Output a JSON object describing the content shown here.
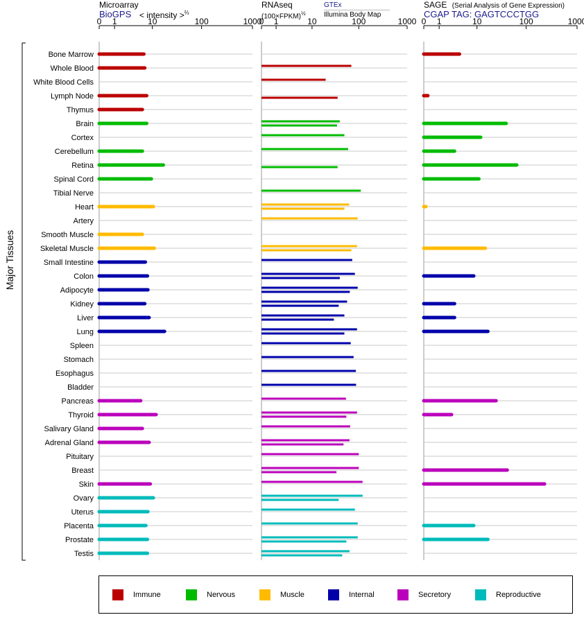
{
  "panels": {
    "microarray": {
      "title": "Microarray",
      "source": "BioGPS",
      "unit": "< intensity >",
      "unit_exp": "⅔"
    },
    "rnaseq": {
      "title": "RNAseq",
      "unit": "(100×FPKM)",
      "unit_exp": "½",
      "source1": "GTEx",
      "source2": "Illumina Body Map"
    },
    "sage": {
      "title": "SAGE",
      "subtitle": "(Serial Analysis of Gene Expression)",
      "tag": "CGAP TAG: GAGTCCCTGG"
    }
  },
  "chart_data": {
    "type": "bar",
    "y_group_label": "Major Tissues",
    "x_ticks": [
      "0",
      "1",
      "10",
      "100",
      "1000"
    ],
    "x_tick_values": [
      0,
      1,
      10,
      100,
      1000
    ],
    "xlim": [
      0,
      1000
    ],
    "categories": [
      "Bone Marrow",
      "Whole Blood",
      "White Blood Cells",
      "Lymph Node",
      "Thymus",
      "Brain",
      "Cortex",
      "Cerebellum",
      "Retina",
      "Spinal Cord",
      "Tibial Nerve",
      "Heart",
      "Artery",
      "Smooth Muscle",
      "Skeletal Muscle",
      "Small Intestine",
      "Colon",
      "Adipocyte",
      "Kidney",
      "Liver",
      "Lung",
      "Spleen",
      "Stomach",
      "Esophagus",
      "Bladder",
      "Pancreas",
      "Thyroid",
      "Salivary Gland",
      "Adrenal Gland",
      "Pituitary",
      "Breast",
      "Skin",
      "Ovary",
      "Uterus",
      "Placenta",
      "Prostate",
      "Testis"
    ],
    "groups": [
      "Immune",
      "Immune",
      "Immune",
      "Immune",
      "Immune",
      "Nervous",
      "Nervous",
      "Nervous",
      "Nervous",
      "Nervous",
      "Nervous",
      "Muscle",
      "Muscle",
      "Muscle",
      "Muscle",
      "Internal",
      "Internal",
      "Internal",
      "Internal",
      "Internal",
      "Internal",
      "Internal",
      "Internal",
      "Internal",
      "Internal",
      "Secretory",
      "Secretory",
      "Secretory",
      "Secretory",
      "Secretory",
      "Secretory",
      "Secretory",
      "Reproductive",
      "Reproductive",
      "Reproductive",
      "Reproductive",
      "Reproductive"
    ],
    "legend": [
      {
        "name": "Immune",
        "color": "#bb0000"
      },
      {
        "name": "Nervous",
        "color": "#00bb00"
      },
      {
        "name": "Muscle",
        "color": "#ffbb00"
      },
      {
        "name": "Internal",
        "color": "#0000aa"
      },
      {
        "name": "Secretory",
        "color": "#bb00bb"
      },
      {
        "name": "Reproductive",
        "color": "#00bbbb"
      }
    ],
    "series": [
      {
        "key": "microarray",
        "values": [
          6.5,
          6.8,
          null,
          7.5,
          6.0,
          7.5,
          null,
          6.0,
          17,
          9.5,
          null,
          10.5,
          null,
          6.0,
          11,
          7.0,
          7.8,
          8.0,
          6.8,
          8.5,
          18,
          null,
          null,
          null,
          null,
          5.5,
          12,
          6.0,
          8.5,
          null,
          null,
          9.0,
          10.5,
          8.0,
          7.2,
          7.8,
          7.8
        ]
      },
      {
        "key": "rnaseq_gtex",
        "values": [
          null,
          70,
          20,
          null,
          null,
          40,
          50,
          60,
          null,
          null,
          110,
          63,
          95,
          null,
          92,
          73,
          83,
          95,
          57,
          50,
          92,
          68,
          78,
          87,
          88,
          54,
          92,
          66,
          64,
          100,
          100,
          120,
          120,
          83,
          95,
          95,
          64
        ]
      },
      {
        "key": "rnaseq_ibm",
        "values": [
          null,
          null,
          null,
          36,
          null,
          35,
          null,
          null,
          36,
          null,
          null,
          50,
          null,
          null,
          70,
          null,
          40,
          65,
          38,
          30,
          50,
          null,
          null,
          null,
          null,
          null,
          55,
          null,
          48,
          null,
          34,
          null,
          38,
          null,
          null,
          55,
          45
        ]
      },
      {
        "key": "sage",
        "values": [
          4.0,
          null,
          null,
          0.2,
          null,
          40,
          12,
          3.0,
          65,
          11,
          null,
          0.1,
          null,
          null,
          15,
          null,
          8.5,
          null,
          3.0,
          3.0,
          17,
          null,
          null,
          null,
          null,
          25,
          2.5,
          null,
          null,
          null,
          42,
          230,
          null,
          null,
          8.5,
          17,
          null
        ]
      }
    ]
  }
}
